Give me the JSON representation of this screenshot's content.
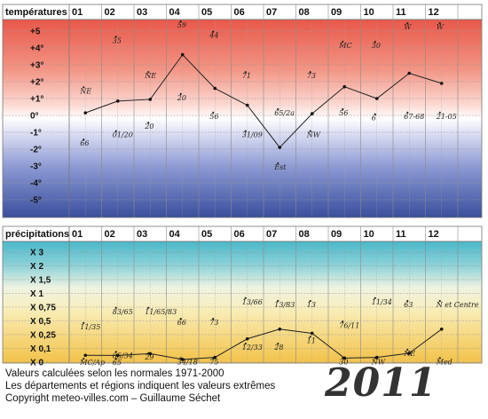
{
  "chart_data": [
    {
      "type": "line",
      "title": "températures",
      "categories": [
        "01",
        "02",
        "03",
        "04",
        "05",
        "06",
        "07",
        "08",
        "09",
        "10",
        "11",
        "12"
      ],
      "y_ticks": [
        "+5",
        "+4°",
        "+3°",
        "+2°",
        "+1°",
        "0°",
        "-1°",
        "-2°",
        "-3°",
        "-4°",
        "-5°"
      ],
      "ylim": [
        -5.5,
        5.5
      ],
      "values": [
        0.15,
        0.85,
        0.95,
        3.6,
        1.6,
        0.6,
        -1.9,
        0.1,
        1.7,
        1.0,
        2.5,
        1.9
      ],
      "annotations": [
        {
          "month": 1,
          "text": "NE",
          "y": 1.3
        },
        {
          "month": 1,
          "text": "66",
          "y": -1.8
        },
        {
          "month": 2,
          "text": "35",
          "y": 4.3
        },
        {
          "month": 2,
          "text": "01/20",
          "y": -1.3
        },
        {
          "month": 3,
          "text": "NE",
          "y": 2.2
        },
        {
          "month": 3,
          "text": "20",
          "y": -0.8
        },
        {
          "month": 4,
          "text": "59",
          "y": 5.2
        },
        {
          "month": 4,
          "text": "20",
          "y": 0.9
        },
        {
          "month": 5,
          "text": "44",
          "y": 4.6
        },
        {
          "month": 5,
          "text": "56",
          "y": -0.2
        },
        {
          "month": 6,
          "text": "71",
          "y": 2.2
        },
        {
          "month": 6,
          "text": "31/09",
          "y": -1.3
        },
        {
          "month": 7,
          "text": "65/2a",
          "y": 0.0
        },
        {
          "month": 7,
          "text": "Est",
          "y": -3.2
        },
        {
          "month": 8,
          "text": "73",
          "y": 2.2
        },
        {
          "month": 8,
          "text": "NW",
          "y": -1.3
        },
        {
          "month": 9,
          "text": "MC",
          "y": 4.0
        },
        {
          "month": 9,
          "text": "56",
          "y": 0.0
        },
        {
          "month": 10,
          "text": "30",
          "y": 4.0
        },
        {
          "month": 10,
          "text": "6",
          "y": -0.3
        },
        {
          "month": 11,
          "text": "W",
          "y": 5.1
        },
        {
          "month": 11,
          "text": "67-68",
          "y": -0.2
        },
        {
          "month": 12,
          "text": "W",
          "y": 5.1
        },
        {
          "month": 12,
          "text": "21-05",
          "y": -0.2
        }
      ]
    },
    {
      "type": "line",
      "title": "précipitations",
      "categories": [
        "01",
        "02",
        "03",
        "04",
        "05",
        "06",
        "07",
        "08",
        "09",
        "10",
        "11",
        "12"
      ],
      "y_ticks": [
        "X 3",
        "X 2",
        "X 1,5",
        "X 1",
        "X 0,75",
        "X 0,5",
        "X 0,25",
        "X 0,1",
        "X 0"
      ],
      "values": [
        0.5,
        0.49,
        0.62,
        0.2,
        0.35,
        1.7,
        2.4,
        2.1,
        0.3,
        0.35,
        0.65,
        2.4
      ],
      "annotations": [
        {
          "month": 1,
          "text": "11/35",
          "y": 2.4
        },
        {
          "month": 1,
          "text": "MC/Ap",
          "y": -0.2
        },
        {
          "month": 2,
          "text": "83/65",
          "y": 3.5
        },
        {
          "month": 2,
          "text": "05/34",
          "y": 0.3
        },
        {
          "month": 2,
          "text": "65",
          "y": -0.2
        },
        {
          "month": 3,
          "text": "11/65/83",
          "y": 3.5
        },
        {
          "month": 3,
          "text": "29",
          "y": 0.2
        },
        {
          "month": 4,
          "text": "66",
          "y": 2.7
        },
        {
          "month": 4,
          "text": "34/18",
          "y": -0.15
        },
        {
          "month": 5,
          "text": "73",
          "y": 2.7
        },
        {
          "month": 5,
          "text": "75",
          "y": -0.15
        },
        {
          "month": 6,
          "text": "13/66",
          "y": 4.2
        },
        {
          "month": 6,
          "text": "12/33",
          "y": 0.9
        },
        {
          "month": 7,
          "text": "13/83",
          "y": 4.0
        },
        {
          "month": 7,
          "text": "28",
          "y": 0.9
        },
        {
          "month": 8,
          "text": "13",
          "y": 4.0
        },
        {
          "month": 8,
          "text": "11",
          "y": 1.4
        },
        {
          "month": 9,
          "text": "76/11",
          "y": 2.5
        },
        {
          "month": 9,
          "text": "30",
          "y": -0.15
        },
        {
          "month": 10,
          "text": "11/34",
          "y": 4.2
        },
        {
          "month": 10,
          "text": "NW",
          "y": -0.15
        },
        {
          "month": 11,
          "text": "63",
          "y": 4.0
        },
        {
          "month": 11,
          "text": "NE",
          "y": 0.45
        },
        {
          "month": 12,
          "text": "N et Centre",
          "y": 4.0
        },
        {
          "month": 12,
          "text": "Med",
          "y": -0.15
        }
      ]
    }
  ],
  "footer": {
    "line1": "Valeurs calculées selon les normales 1971-2000",
    "line2": "Les départements et régions indiquent les valeurs extrêmes",
    "line3": "Copyright meteo-villes.com – Guillaume Séchet"
  },
  "year": "2011",
  "colors": {
    "temp_top": "#e8584a",
    "temp_zero": "#ffffff",
    "temp_bottom": "#3a4e9c",
    "precip_top": "#4ab8c8",
    "precip_mid": "#f4f0c0",
    "precip_bottom": "#f2c24a",
    "grid": "#8a8a8a",
    "line": "#222222"
  }
}
